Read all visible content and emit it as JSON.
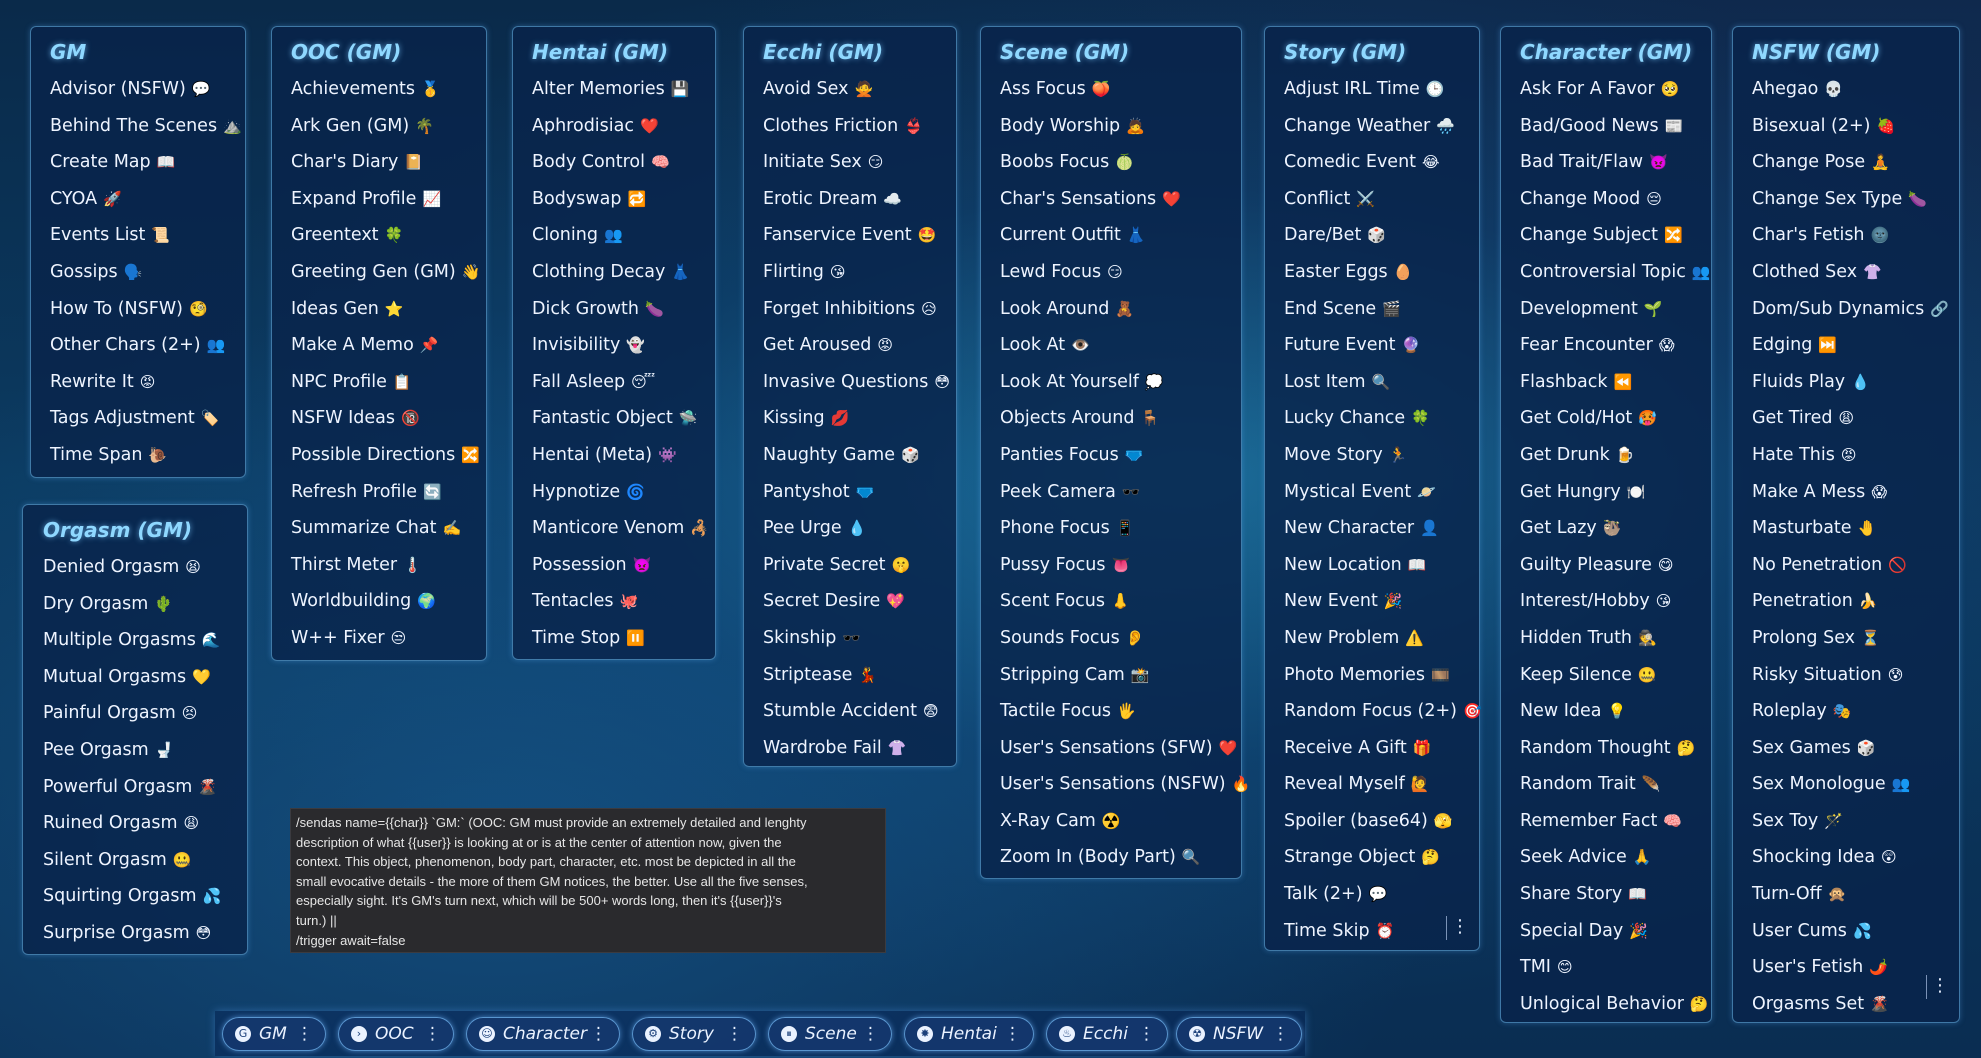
{
  "panels": [
    {
      "id": "gm",
      "title": "GM",
      "items": [
        [
          "Advisor (NSFW)",
          "💬"
        ],
        [
          "Behind The Scenes",
          "⛰️"
        ],
        [
          "Create Map",
          "📖"
        ],
        [
          "CYOA",
          "🚀"
        ],
        [
          "Events List",
          "📜"
        ],
        [
          "Gossips",
          "🗣️"
        ],
        [
          "How To (NSFW)",
          "🧐"
        ],
        [
          "Other Chars (2+)",
          "👥"
        ],
        [
          "Rewrite It",
          "😡"
        ],
        [
          "Tags Adjustment",
          "🏷️"
        ],
        [
          "Time Span",
          "🐌"
        ]
      ]
    },
    {
      "id": "orgasm",
      "title": "Orgasm (GM)",
      "items": [
        [
          "Denied Orgasm",
          "😫"
        ],
        [
          "Dry Orgasm",
          "🌵"
        ],
        [
          "Multiple Orgasms",
          "🌊"
        ],
        [
          "Mutual Orgasms",
          "💛"
        ],
        [
          "Painful Orgasm",
          "😣"
        ],
        [
          "Pee Orgasm",
          "🚽"
        ],
        [
          "Powerful Orgasm",
          "🌋"
        ],
        [
          "Ruined Orgasm",
          "😩"
        ],
        [
          "Silent Orgasm",
          "🤐"
        ],
        [
          "Squirting Orgasm",
          "💦"
        ],
        [
          "Surprise Orgasm",
          "😳"
        ]
      ]
    },
    {
      "id": "ooc",
      "title": "OOC (GM)",
      "items": [
        [
          "Achievements",
          "🥇"
        ],
        [
          "Ark Gen (GM)",
          "🌴"
        ],
        [
          "Char's Diary",
          "📔"
        ],
        [
          "Expand Profile",
          "📈"
        ],
        [
          "Greentext",
          "🍀"
        ],
        [
          "Greeting Gen (GM)",
          "👋"
        ],
        [
          "Ideas Gen",
          "⭐"
        ],
        [
          "Make A Memo",
          "📌"
        ],
        [
          "NPC Profile",
          "📋"
        ],
        [
          "NSFW Ideas",
          "🔞"
        ],
        [
          "Possible Directions",
          "🔀"
        ],
        [
          "Refresh Profile",
          "🔄"
        ],
        [
          "Summarize Chat",
          "✍️"
        ],
        [
          "Thirst Meter",
          "🌡️"
        ],
        [
          "Worldbuilding",
          "🌍"
        ],
        [
          "W++ Fixer",
          "😒"
        ]
      ]
    },
    {
      "id": "hentai",
      "title": "Hentai (GM)",
      "items": [
        [
          "Alter Memories",
          "💾"
        ],
        [
          "Aphrodisiac",
          "❤️"
        ],
        [
          "Body Control",
          "🧠"
        ],
        [
          "Bodyswap",
          "🔁"
        ],
        [
          "Cloning",
          "👥"
        ],
        [
          "Clothing Decay",
          "👗"
        ],
        [
          "Dick Growth",
          "🍆"
        ],
        [
          "Invisibility",
          "👻"
        ],
        [
          "Fall Asleep",
          "😴"
        ],
        [
          "Fantastic Object",
          "🛸"
        ],
        [
          "Hentai (Meta)",
          "👾"
        ],
        [
          "Hypnotize",
          "🌀"
        ],
        [
          "Manticore Venom",
          "🦂"
        ],
        [
          "Possession",
          "👿"
        ],
        [
          "Tentacles",
          "🐙"
        ],
        [
          "Time Stop",
          "⏸️"
        ]
      ]
    },
    {
      "id": "ecchi",
      "title": "Ecchi (GM)",
      "items": [
        [
          "Avoid Sex",
          "🙅"
        ],
        [
          "Clothes Friction",
          "👙"
        ],
        [
          "Initiate Sex",
          "😏"
        ],
        [
          "Erotic Dream",
          "☁️"
        ],
        [
          "Fanservice Event",
          "🤩"
        ],
        [
          "Flirting",
          "😘"
        ],
        [
          "Forget Inhibitions",
          "😥"
        ],
        [
          "Get Aroused",
          "😡"
        ],
        [
          "Invasive Questions",
          "😳"
        ],
        [
          "Kissing",
          "💋"
        ],
        [
          "Naughty Game",
          "🎲"
        ],
        [
          "Pantyshot",
          "🩲"
        ],
        [
          "Pee Urge",
          "💧"
        ],
        [
          "Private Secret",
          "🤫"
        ],
        [
          "Secret Desire",
          "💖"
        ],
        [
          "Skinship",
          "🕶️"
        ],
        [
          "Striptease",
          "💃"
        ],
        [
          "Stumble Accident",
          "😨"
        ],
        [
          "Wardrobe Fail",
          "👚"
        ]
      ]
    },
    {
      "id": "scene",
      "title": "Scene (GM)",
      "items": [
        [
          "Ass Focus",
          "🍑"
        ],
        [
          "Body Worship",
          "🙇"
        ],
        [
          "Boobs Focus",
          "🍈"
        ],
        [
          "Char's Sensations",
          "❤️"
        ],
        [
          "Current Outfit",
          "👗"
        ],
        [
          "Lewd Focus",
          "😏"
        ],
        [
          "Look Around",
          "🧸"
        ],
        [
          "Look At",
          "👁️"
        ],
        [
          "Look At Yourself",
          "💭"
        ],
        [
          "Objects Around",
          "🪑"
        ],
        [
          "Panties Focus",
          "🩲"
        ],
        [
          "Peek Camera",
          "🕶️"
        ],
        [
          "Phone Focus",
          "📱"
        ],
        [
          "Pussy Focus",
          "👅"
        ],
        [
          "Scent Focus",
          "👃"
        ],
        [
          "Sounds Focus",
          "👂"
        ],
        [
          "Stripping Cam",
          "📸"
        ],
        [
          "Tactile Focus",
          "🖐️"
        ],
        [
          "User's Sensations (SFW)",
          "❤️"
        ],
        [
          "User's Sensations (NSFW)",
          "🔥"
        ],
        [
          "X-Ray Cam",
          "☢️"
        ],
        [
          "Zoom In (Body Part)",
          "🔍"
        ]
      ]
    },
    {
      "id": "story",
      "title": "Story (GM)",
      "items": [
        [
          "Adjust IRL Time",
          "🕒"
        ],
        [
          "Change Weather",
          "🌧️"
        ],
        [
          "Comedic Event",
          "😂"
        ],
        [
          "Conflict",
          "⚔️"
        ],
        [
          "Dare/Bet",
          "🎲"
        ],
        [
          "Easter Eggs",
          "🥚"
        ],
        [
          "End Scene",
          "🎬"
        ],
        [
          "Future Event",
          "🔮"
        ],
        [
          "Lost Item",
          "🔍"
        ],
        [
          "Lucky Chance",
          "🍀"
        ],
        [
          "Move Story",
          "🏃"
        ],
        [
          "Mystical Event",
          "🪐"
        ],
        [
          "New Character",
          "👤"
        ],
        [
          "New Location",
          "📖"
        ],
        [
          "New Event",
          "🎉"
        ],
        [
          "New Problem",
          "⚠️"
        ],
        [
          "Photo Memories",
          "🎞️"
        ],
        [
          "Random Focus (2+)",
          "🎯"
        ],
        [
          "Receive A Gift",
          "🎁"
        ],
        [
          "Reveal Myself",
          "🙋"
        ],
        [
          "Spoiler (base64)",
          "🫣"
        ],
        [
          "Strange Object",
          "🤔"
        ],
        [
          "Talk (2+)",
          "💬"
        ],
        [
          "Time Skip",
          "⏰"
        ]
      ]
    },
    {
      "id": "character",
      "title": "Character (GM)",
      "items": [
        [
          "Ask For A Favor",
          "🥺"
        ],
        [
          "Bad/Good News",
          "📰"
        ],
        [
          "Bad Trait/Flaw",
          "👿"
        ],
        [
          "Change Mood",
          "😔"
        ],
        [
          "Change Subject",
          "🔀"
        ],
        [
          "Controversial Topic",
          "👥"
        ],
        [
          "Development",
          "🌱"
        ],
        [
          "Fear Encounter",
          "😱"
        ],
        [
          "Flashback",
          "⏪"
        ],
        [
          "Get Cold/Hot",
          "🥵"
        ],
        [
          "Get Drunk",
          "🍺"
        ],
        [
          "Get Hungry",
          "🍽️"
        ],
        [
          "Get Lazy",
          "🦥"
        ],
        [
          "Guilty Pleasure",
          "😋"
        ],
        [
          "Interest/Hobby",
          "😘"
        ],
        [
          "Hidden Truth",
          "🕵️"
        ],
        [
          "Keep Silence",
          "🤐"
        ],
        [
          "New Idea",
          "💡"
        ],
        [
          "Random Thought",
          "🤔"
        ],
        [
          "Random Trait",
          "🪶"
        ],
        [
          "Remember Fact",
          "🧠"
        ],
        [
          "Seek Advice",
          "🙏"
        ],
        [
          "Share Story",
          "📖"
        ],
        [
          "Special Day",
          "🎉"
        ],
        [
          "TMI",
          "😊"
        ],
        [
          "Unlogical Behavior",
          "🤔"
        ]
      ]
    },
    {
      "id": "nsfw",
      "title": "NSFW (GM)",
      "items": [
        [
          "Ahegao",
          "💀"
        ],
        [
          "Bisexual (2+)",
          "🍓"
        ],
        [
          "Change Pose",
          "🧘"
        ],
        [
          "Change Sex Type",
          "🍆"
        ],
        [
          "Char's Fetish",
          "🌚"
        ],
        [
          "Clothed Sex",
          "👚"
        ],
        [
          "Dom/Sub Dynamics",
          "🔗"
        ],
        [
          "Edging",
          "⏭️"
        ],
        [
          "Fluids Play",
          "💧"
        ],
        [
          "Get Tired",
          "😩"
        ],
        [
          "Hate This",
          "😡"
        ],
        [
          "Make A Mess",
          "😱"
        ],
        [
          "Masturbate",
          "🤚"
        ],
        [
          "No Penetration",
          "🚫"
        ],
        [
          "Penetration",
          "🍌"
        ],
        [
          "Prolong Sex",
          "⏳"
        ],
        [
          "Risky Situation",
          "😰"
        ],
        [
          "Roleplay",
          "🎭"
        ],
        [
          "Sex Games",
          "🎲"
        ],
        [
          "Sex Monologue",
          "👥"
        ],
        [
          "Sex Toy",
          "🪄"
        ],
        [
          "Shocking Idea",
          "😲"
        ],
        [
          "Turn-Off",
          "🙊"
        ],
        [
          "User Cums",
          "💦"
        ],
        [
          "User's Fetish",
          "🌶️"
        ],
        [
          "Orgasms Set",
          "🌋"
        ]
      ]
    }
  ],
  "command_text": [
    "/sendas name={{char}} `GM:` (OOC: GM must provide an extremely detailed and lenghty",
    "description of what {{user}} is looking at or is at the center of attention now, given the",
    "context. This object, phenomenon, body part, character, etc. most be depicted in all the",
    "small evocative details - the more of them GM notices, the better. Use all the five senses,",
    "especially sight. It's GM's turn next, which will be 500+ words long, then it's {{user}}'s",
    "turn.) ||",
    "/trigger await=false"
  ],
  "quick_bar": [
    {
      "label": "GM",
      "icon": "gm-icon",
      "glyph": "G"
    },
    {
      "label": "OOC",
      "icon": "ooc-icon",
      "glyph": "›"
    },
    {
      "label": "Character",
      "icon": "character-icon",
      "glyph": "☺"
    },
    {
      "label": "Story",
      "icon": "story-icon",
      "glyph": "⚙"
    },
    {
      "label": "Scene",
      "icon": "scene-icon",
      "glyph": "⏸"
    },
    {
      "label": "Hentai",
      "icon": "hentai-icon",
      "glyph": "✸"
    },
    {
      "label": "Ecchi",
      "icon": "ecchi-icon",
      "glyph": "♨"
    },
    {
      "label": "NSFW",
      "icon": "nsfw-icon",
      "glyph": "☢"
    }
  ],
  "menu_glyph": "⋮"
}
